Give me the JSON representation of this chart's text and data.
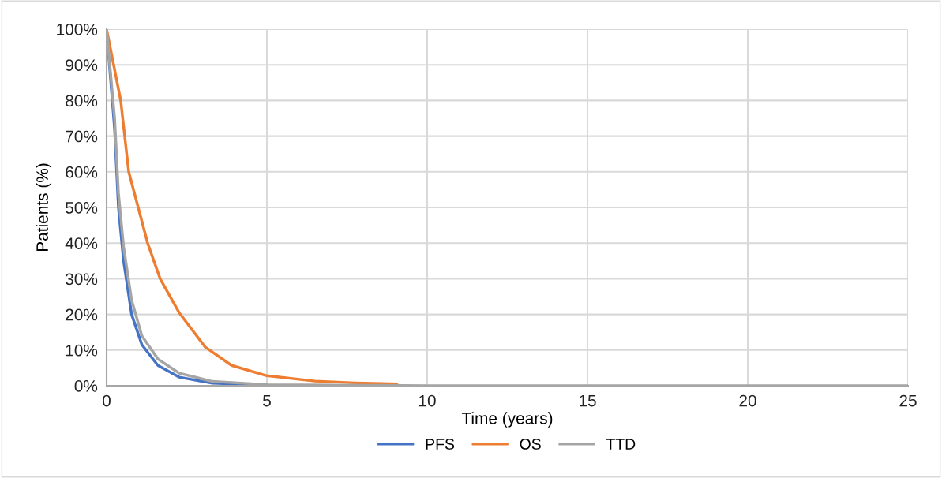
{
  "chart_data": {
    "type": "line",
    "xlabel": "Time (years)",
    "ylabel": "Patients (%)",
    "xlim": [
      0,
      25
    ],
    "xticks": [
      0,
      5,
      10,
      15,
      20,
      25
    ],
    "ylim": [
      0,
      100
    ],
    "yticks": [
      {
        "value": 0,
        "label": "0%"
      },
      {
        "value": 10,
        "label": "10%"
      },
      {
        "value": 20,
        "label": "20%"
      },
      {
        "value": 30,
        "label": "30%"
      },
      {
        "value": 40,
        "label": "40%"
      },
      {
        "value": 50,
        "label": "50%"
      },
      {
        "value": 60,
        "label": "60%"
      },
      {
        "value": 70,
        "label": "70%"
      },
      {
        "value": 80,
        "label": "80%"
      },
      {
        "value": 90,
        "label": "90%"
      },
      {
        "value": 100,
        "label": "100%"
      }
    ],
    "grid": true,
    "legend": "bottom",
    "marker": "none",
    "line_style": "solid",
    "series": [
      {
        "name": "PFS",
        "color": "#4472c4",
        "x": [
          0,
          0.25,
          0.37,
          0.53,
          0.78,
          1.1,
          1.6,
          2.27,
          3.3,
          5.0
        ],
        "values": [
          100,
          72,
          50,
          35,
          20,
          11.5,
          5.7,
          2.4,
          0.7,
          0.2
        ]
      },
      {
        "name": "OS",
        "color": "#ed7d31",
        "x": [
          0,
          0.44,
          0.69,
          1.03,
          1.28,
          1.67,
          2.27,
          3.08,
          3.9,
          5.0,
          6.5,
          7.75,
          9.05
        ],
        "values": [
          100,
          80,
          60,
          48.5,
          40,
          30,
          20.4,
          10.8,
          5.7,
          2.8,
          1.3,
          0.8,
          0.5
        ]
      },
      {
        "name": "TTD",
        "color": "#a5a5a5",
        "x": [
          0,
          0.25,
          0.37,
          0.53,
          0.78,
          1.1,
          1.6,
          2.27,
          3.3,
          5.0,
          10,
          25
        ],
        "values": [
          100,
          75,
          54,
          39,
          24,
          14,
          7.5,
          3.5,
          1.2,
          0.3,
          0,
          0
        ]
      }
    ]
  }
}
